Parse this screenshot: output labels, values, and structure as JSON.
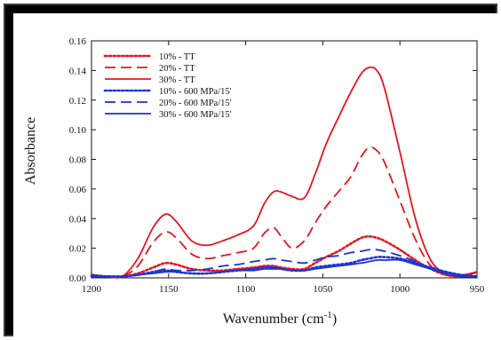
{
  "chart_data": {
    "type": "line",
    "title": "",
    "xlabel": "Wavenumber (cm⁻¹)",
    "ylabel": "Absorbance",
    "xlim": [
      1200,
      950
    ],
    "ylim": [
      0,
      0.16
    ],
    "x_reversed": true,
    "grid": false,
    "legend_position": "top-left",
    "xticks": [
      "1200",
      "1150",
      "1100",
      "1050",
      "1000",
      "950"
    ],
    "yticks": [
      "0.00",
      "0.02",
      "0.04",
      "0.06",
      "0.08",
      "0.10",
      "0.12",
      "0.14",
      "0.16"
    ],
    "x": [
      1200,
      1190,
      1180,
      1170,
      1160,
      1152,
      1145,
      1135,
      1125,
      1115,
      1105,
      1095,
      1088,
      1082,
      1077,
      1070,
      1062,
      1055,
      1048,
      1040,
      1032,
      1025,
      1020,
      1015,
      1010,
      1000,
      990,
      980,
      970,
      960,
      950
    ],
    "series": [
      {
        "name": "10% - TT",
        "color": "#e8141c",
        "dash": "dot",
        "values": [
          0.002,
          0.001,
          0.001,
          0.003,
          0.007,
          0.01,
          0.009,
          0.006,
          0.005,
          0.005,
          0.006,
          0.007,
          0.008,
          0.008,
          0.007,
          0.006,
          0.006,
          0.01,
          0.014,
          0.018,
          0.023,
          0.027,
          0.028,
          0.027,
          0.025,
          0.019,
          0.012,
          0.006,
          0.002,
          0.001,
          0.004
        ]
      },
      {
        "name": "20% - TT",
        "color": "#e8141c",
        "dash": "dash",
        "values": [
          0.002,
          0.001,
          0.001,
          0.008,
          0.024,
          0.031,
          0.027,
          0.016,
          0.013,
          0.015,
          0.017,
          0.02,
          0.03,
          0.034,
          0.028,
          0.02,
          0.025,
          0.037,
          0.048,
          0.058,
          0.068,
          0.082,
          0.088,
          0.086,
          0.078,
          0.052,
          0.026,
          0.008,
          0.002,
          0.001,
          0.004
        ]
      },
      {
        "name": "30% - TT",
        "color": "#e8141c",
        "dash": "solid",
        "values": [
          0.002,
          0.001,
          0.001,
          0.013,
          0.034,
          0.043,
          0.038,
          0.025,
          0.022,
          0.025,
          0.029,
          0.035,
          0.05,
          0.058,
          0.058,
          0.055,
          0.054,
          0.07,
          0.09,
          0.108,
          0.125,
          0.138,
          0.142,
          0.14,
          0.128,
          0.085,
          0.04,
          0.012,
          0.003,
          0.002,
          0.004
        ]
      },
      {
        "name": "10% - 600 MPa/15'",
        "color": "#1a35d6",
        "dash": "dot",
        "values": [
          0.001,
          0.001,
          0.001,
          0.002,
          0.004,
          0.005,
          0.004,
          0.003,
          0.003,
          0.004,
          0.005,
          0.006,
          0.007,
          0.007,
          0.006,
          0.005,
          0.005,
          0.007,
          0.008,
          0.009,
          0.01,
          0.012,
          0.013,
          0.014,
          0.014,
          0.013,
          0.01,
          0.007,
          0.004,
          0.002,
          0.001
        ]
      },
      {
        "name": "20% - 600 MPa/15'",
        "color": "#1a35d6",
        "dash": "dash",
        "values": [
          0.002,
          0.001,
          0.001,
          0.002,
          0.004,
          0.006,
          0.005,
          0.005,
          0.006,
          0.008,
          0.009,
          0.011,
          0.012,
          0.013,
          0.012,
          0.011,
          0.01,
          0.012,
          0.014,
          0.015,
          0.017,
          0.018,
          0.019,
          0.019,
          0.018,
          0.015,
          0.011,
          0.006,
          0.003,
          0.001,
          0.001
        ]
      },
      {
        "name": "30% - 600 MPa/15'",
        "color": "#1a35d6",
        "dash": "solid",
        "values": [
          0.001,
          0.001,
          0.001,
          0.002,
          0.003,
          0.004,
          0.004,
          0.003,
          0.003,
          0.004,
          0.005,
          0.005,
          0.006,
          0.006,
          0.006,
          0.005,
          0.005,
          0.006,
          0.007,
          0.008,
          0.009,
          0.01,
          0.011,
          0.012,
          0.012,
          0.012,
          0.009,
          0.006,
          0.003,
          0.001,
          0.001
        ]
      }
    ]
  }
}
